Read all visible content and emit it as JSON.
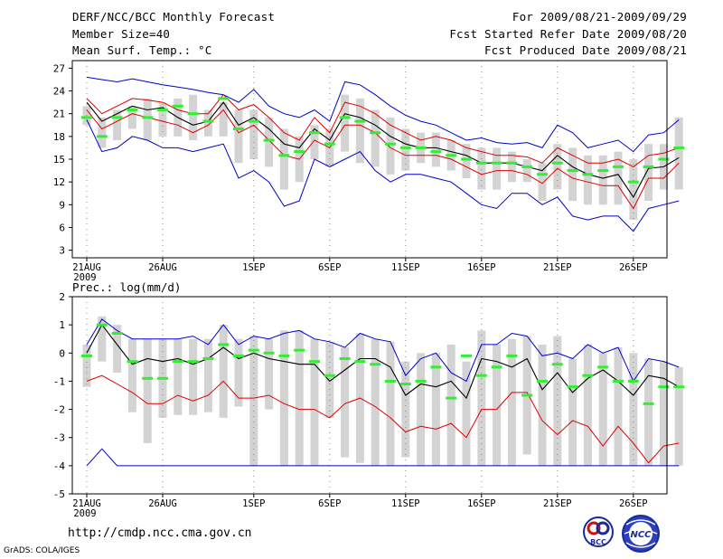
{
  "header": {
    "title": "DERF/NCC/BCC Monthly Forecast",
    "member_size": "Member Size=40",
    "variable": "Mean Surf. Temp.: °C",
    "period": "For 2009/08/21-2009/09/29",
    "started": "Fcst Started Refer Date 2009/08/20",
    "produced": "Fcst Produced Date 2009/08/21"
  },
  "footer": {
    "url": "http://cmdp.ncc.cma.gov.cn",
    "credit": "GrADS: COLA/IGES"
  },
  "logos": {
    "bcc": "BCC",
    "ncc": "NCC"
  },
  "colors": {
    "max": "#0000cc",
    "min": "#0000cc",
    "upper": "#dd0000",
    "lower": "#dd0000",
    "mean": "#000000",
    "obs": "#33ee33",
    "box": "#d3d3d3",
    "grid": "#888888"
  },
  "chart_data": [
    {
      "type": "line",
      "title": "Mean Surf. Temp.: °C",
      "ylim": [
        2,
        28
      ],
      "yticks": [
        3,
        6,
        9,
        12,
        15,
        18,
        21,
        24,
        27
      ],
      "x": [
        1,
        2,
        3,
        4,
        5,
        6,
        7,
        8,
        9,
        10,
        11,
        12,
        13,
        14,
        15,
        16,
        17,
        18,
        19,
        20,
        21,
        22,
        23,
        24,
        25,
        26,
        27,
        28,
        29,
        30,
        31,
        32,
        33,
        34,
        35,
        36,
        37,
        38,
        39,
        40
      ],
      "xtick_labels": [
        {
          "day": 1,
          "label": "21AUG",
          "sub": "2009"
        },
        {
          "day": 6,
          "label": "26AUG"
        },
        {
          "day": 12,
          "label": "1SEP"
        },
        {
          "day": 17,
          "label": "6SEP"
        },
        {
          "day": 22,
          "label": "11SEP"
        },
        {
          "day": 27,
          "label": "16SEP"
        },
        {
          "day": 32,
          "label": "21SEP"
        },
        {
          "day": 37,
          "label": "26SEP"
        }
      ],
      "series": [
        {
          "name": "max",
          "values": [
            25.8,
            25.5,
            25.2,
            25.6,
            25.2,
            24.8,
            24.5,
            24.2,
            23.8,
            23.5,
            22.5,
            24.2,
            22.0,
            21.0,
            20.5,
            21.5,
            20.0,
            25.2,
            24.8,
            23.5,
            22.0,
            20.8,
            20.0,
            19.5,
            18.5,
            17.5,
            17.8,
            17.2,
            17.0,
            17.2,
            16.5,
            19.5,
            18.5,
            16.5,
            17.0,
            17.5,
            16.0,
            18.2,
            18.5,
            20.2
          ]
        },
        {
          "name": "upper",
          "values": [
            23.0,
            21.0,
            22.0,
            23.0,
            22.8,
            22.5,
            21.5,
            21.0,
            21.0,
            23.5,
            21.5,
            22.2,
            20.5,
            18.5,
            17.5,
            20.5,
            18.5,
            22.5,
            22.0,
            21.0,
            19.5,
            18.5,
            17.5,
            18.0,
            17.5,
            16.5,
            16.0,
            15.5,
            15.5,
            15.3,
            14.5,
            16.5,
            15.5,
            14.5,
            14.5,
            15.0,
            14.0,
            15.5,
            15.8,
            16.5
          ]
        },
        {
          "name": "mean",
          "values": [
            22.5,
            20.0,
            21.0,
            22.0,
            21.5,
            21.8,
            20.5,
            19.5,
            20.0,
            22.5,
            19.5,
            20.5,
            19.0,
            17.0,
            16.5,
            19.0,
            17.5,
            21.0,
            20.5,
            19.5,
            18.0,
            17.0,
            16.5,
            16.5,
            16.0,
            15.5,
            14.5,
            14.5,
            14.5,
            14.0,
            13.5,
            15.5,
            14.0,
            13.0,
            12.5,
            13.0,
            10.0,
            13.8,
            14.0,
            15.2
          ]
        },
        {
          "name": "lower",
          "values": [
            21.5,
            19.0,
            20.0,
            21.0,
            20.5,
            20.0,
            19.5,
            18.5,
            19.5,
            21.5,
            18.5,
            19.5,
            17.5,
            15.5,
            15.0,
            17.5,
            16.5,
            19.5,
            19.5,
            18.5,
            16.5,
            15.5,
            15.5,
            15.5,
            15.0,
            14.0,
            13.0,
            13.5,
            13.5,
            13.0,
            11.8,
            13.8,
            12.5,
            12.0,
            11.5,
            11.5,
            8.5,
            12.5,
            12.5,
            14.5
          ]
        },
        {
          "name": "min",
          "values": [
            20.2,
            16.0,
            16.5,
            18.0,
            17.5,
            16.5,
            16.5,
            16.0,
            16.5,
            17.0,
            12.5,
            13.5,
            12.0,
            8.8,
            9.5,
            15.0,
            14.0,
            15.0,
            16.0,
            13.5,
            12.0,
            13.0,
            13.0,
            12.5,
            12.0,
            10.5,
            9.0,
            8.5,
            10.5,
            10.5,
            9.0,
            10.0,
            7.5,
            7.0,
            7.5,
            7.5,
            5.5,
            8.5,
            9.0,
            9.5
          ]
        },
        {
          "name": "observed",
          "values": [
            20.5,
            18.0,
            20.5,
            21.5,
            20.5,
            21.5,
            22.0,
            21.0,
            20.0,
            23.0,
            19.0,
            20.0,
            17.5,
            15.5,
            16.0,
            18.5,
            17.0,
            20.5,
            20.0,
            18.5,
            17.0,
            16.5,
            16.5,
            16.0,
            15.5,
            15.0,
            14.5,
            14.5,
            14.5,
            14.0,
            13.0,
            14.5,
            13.5,
            13.0,
            13.5,
            14.0,
            12.0,
            14.0,
            15.0,
            16.5
          ]
        },
        {
          "name": "box_high",
          "values": [
            22.0,
            20.5,
            21.5,
            22.0,
            23.0,
            22.5,
            23.0,
            23.5,
            21.5,
            22.5,
            21.5,
            21.5,
            20.5,
            19.0,
            18.0,
            19.5,
            19.0,
            23.5,
            23.0,
            21.5,
            20.5,
            19.0,
            18.5,
            18.5,
            17.5,
            17.0,
            16.5,
            16.5,
            16.0,
            15.0,
            14.5,
            17.0,
            16.5,
            15.5,
            15.5,
            16.0,
            15.0,
            17.0,
            17.0,
            20.5
          ]
        },
        {
          "name": "box_low",
          "values": [
            19.5,
            16.5,
            17.5,
            19.0,
            17.5,
            18.0,
            18.0,
            17.5,
            18.0,
            18.0,
            14.5,
            15.0,
            14.0,
            11.0,
            12.0,
            15.0,
            14.0,
            16.0,
            14.5,
            14.0,
            13.0,
            13.5,
            14.5,
            14.0,
            13.5,
            12.5,
            11.0,
            11.0,
            12.0,
            12.0,
            9.5,
            11.0,
            9.5,
            9.0,
            9.0,
            9.0,
            7.0,
            9.5,
            11.0,
            11.0
          ]
        }
      ]
    },
    {
      "type": "line",
      "title": "Prec.: log(mm/d)",
      "ylim": [
        -5,
        2
      ],
      "yticks": [
        -5,
        -4,
        -3,
        -2,
        -1,
        0,
        1,
        2
      ],
      "x": [
        1,
        2,
        3,
        4,
        5,
        6,
        7,
        8,
        9,
        10,
        11,
        12,
        13,
        14,
        15,
        16,
        17,
        18,
        19,
        20,
        21,
        22,
        23,
        24,
        25,
        26,
        27,
        28,
        29,
        30,
        31,
        32,
        33,
        34,
        35,
        36,
        37,
        38,
        39,
        40
      ],
      "xtick_labels": [
        {
          "day": 1,
          "label": "21AUG",
          "sub": "2009"
        },
        {
          "day": 6,
          "label": "26AUG"
        },
        {
          "day": 12,
          "label": "1SEP"
        },
        {
          "day": 17,
          "label": "6SEP"
        },
        {
          "day": 22,
          "label": "11SEP"
        },
        {
          "day": 27,
          "label": "16SEP"
        },
        {
          "day": 32,
          "label": "21SEP"
        },
        {
          "day": 37,
          "label": "26SEP"
        }
      ],
      "series": [
        {
          "name": "max",
          "values": [
            0.3,
            1.2,
            0.8,
            0.5,
            0.5,
            0.5,
            0.5,
            0.6,
            0.3,
            1.0,
            0.3,
            0.6,
            0.5,
            0.7,
            0.8,
            0.5,
            0.4,
            0.2,
            0.7,
            0.5,
            0.4,
            -0.8,
            -0.2,
            0.0,
            -0.7,
            -1.0,
            0.3,
            0.3,
            0.7,
            0.6,
            -0.1,
            0.0,
            -0.2,
            0.3,
            0.0,
            0.2,
            -1.0,
            -0.2,
            -0.3,
            -0.5
          ]
        },
        {
          "name": "mean",
          "values": [
            0.0,
            1.0,
            0.3,
            -0.4,
            -0.2,
            -0.3,
            -0.2,
            -0.4,
            -0.2,
            0.2,
            -0.2,
            0.0,
            -0.2,
            -0.3,
            -0.4,
            -0.4,
            -1.0,
            -0.6,
            -0.2,
            -0.2,
            -0.5,
            -1.5,
            -1.1,
            -1.2,
            -1.0,
            -1.6,
            -0.2,
            -0.3,
            -0.5,
            -0.2,
            -1.3,
            -0.7,
            -1.4,
            -0.9,
            -0.6,
            -1.0,
            -1.5,
            -0.8,
            -0.9,
            -1.2
          ]
        },
        {
          "name": "lower",
          "values": [
            -1.0,
            -0.8,
            -1.1,
            -1.4,
            -1.8,
            -1.8,
            -1.5,
            -1.7,
            -1.5,
            -1.0,
            -1.6,
            -1.6,
            -1.5,
            -1.8,
            -2.0,
            -2.0,
            -2.3,
            -1.8,
            -1.6,
            -1.9,
            -2.3,
            -2.8,
            -2.6,
            -2.7,
            -2.5,
            -3.0,
            -2.0,
            -2.0,
            -1.4,
            -1.4,
            -2.4,
            -2.9,
            -2.4,
            -2.6,
            -3.3,
            -2.6,
            -3.2,
            -3.9,
            -3.3,
            -3.2
          ]
        },
        {
          "name": "min",
          "values": [
            -4.0,
            -3.4,
            -4.0,
            -4.0,
            -4.0,
            -4.0,
            -4.0,
            -4.0,
            -4.0,
            -4.0,
            -4.0,
            -4.0,
            -4.0,
            -4.0,
            -4.0,
            -4.0,
            -4.0,
            -4.0,
            -4.0,
            -4.0,
            -4.0,
            -4.0,
            -4.0,
            -4.0,
            -4.0,
            -4.0,
            -4.0,
            -4.0,
            -4.0,
            -4.0,
            -4.0,
            -4.0,
            -4.0,
            -4.0,
            -4.0,
            -4.0,
            -4.0,
            -4.0,
            -4.0,
            -4.0
          ]
        },
        {
          "name": "observed",
          "values": [
            -0.1,
            1.0,
            0.7,
            -0.3,
            -0.9,
            -0.9,
            -0.3,
            -0.3,
            -0.2,
            0.3,
            -0.1,
            0.1,
            0.0,
            -0.1,
            0.1,
            -0.3,
            -0.8,
            -0.2,
            -0.3,
            -0.4,
            -1.0,
            -1.1,
            -1.0,
            -0.5,
            -1.6,
            -0.1,
            -0.8,
            -0.5,
            -0.1,
            -1.5,
            -1.0,
            -0.4,
            -1.2,
            -0.8,
            -0.5,
            -1.0,
            -1.0,
            -1.8,
            -1.2,
            -1.2
          ]
        },
        {
          "name": "box_high",
          "values": [
            0.3,
            1.3,
            1.0,
            0.5,
            0.5,
            0.5,
            0.5,
            0.5,
            0.5,
            1.0,
            0.5,
            0.6,
            0.5,
            0.8,
            0.8,
            0.5,
            0.4,
            0.2,
            0.7,
            0.5,
            0.4,
            -0.3,
            0.0,
            0.0,
            0.3,
            -0.3,
            0.8,
            0.3,
            0.5,
            0.6,
            0.3,
            0.6,
            -0.2,
            0.3,
            0.0,
            0.2,
            0.0,
            -0.2,
            -0.3,
            -0.5
          ]
        },
        {
          "name": "box_low",
          "values": [
            -1.2,
            -0.3,
            -0.7,
            -2.1,
            -3.2,
            -2.3,
            -2.2,
            -2.2,
            -2.1,
            -2.3,
            -1.9,
            -4.0,
            -2.0,
            -4.0,
            -4.0,
            -4.0,
            -2.3,
            -3.7,
            -3.9,
            -4.0,
            -4.0,
            -3.7,
            -4.0,
            -4.0,
            -4.0,
            -4.0,
            -4.0,
            -4.0,
            -4.0,
            -3.6,
            -4.0,
            -4.0,
            -4.0,
            -4.0,
            -4.0,
            -4.0,
            -4.0,
            -4.0,
            -4.0,
            -4.0
          ]
        }
      ]
    }
  ]
}
